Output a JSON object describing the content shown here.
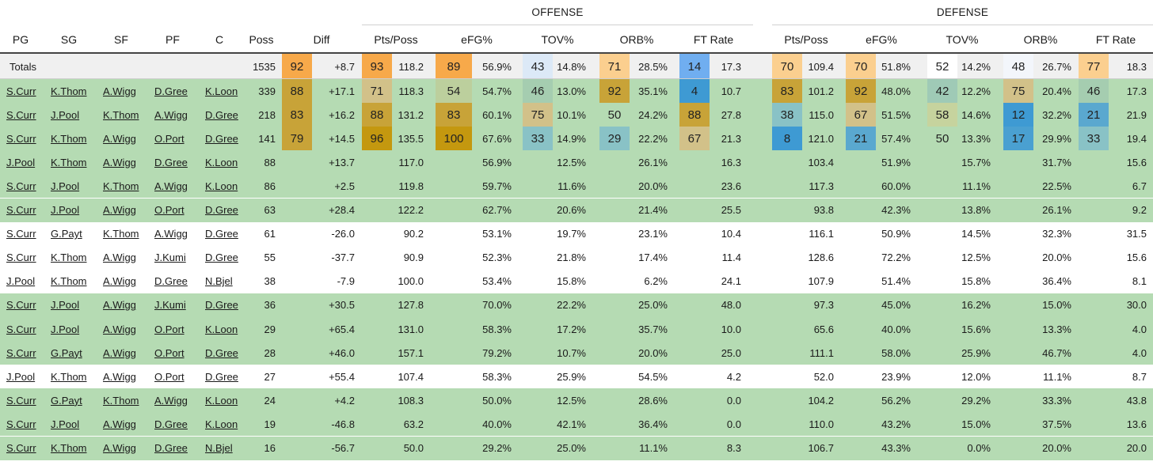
{
  "headers": {
    "groups": [
      {
        "label": "OFFENSE",
        "col_start": 8,
        "col_end": 17
      },
      {
        "label": "DEFENSE",
        "col_start": 18,
        "col_end": 27
      }
    ],
    "columns": [
      {
        "label": "PG",
        "align": "c"
      },
      {
        "label": "SG",
        "align": "c"
      },
      {
        "label": "SF",
        "align": "c"
      },
      {
        "label": "PF",
        "align": "c"
      },
      {
        "label": "C",
        "align": "c"
      },
      {
        "label": "Poss",
        "align": "c"
      },
      {
        "label": "",
        "align": "c"
      },
      {
        "label": "Diff",
        "align": "c"
      },
      {
        "label": "Pts/Poss",
        "align": "c",
        "span": 2
      },
      {
        "label": "",
        "align": "c"
      },
      {
        "label": "eFG%",
        "align": "c",
        "span": 2
      },
      {
        "label": "",
        "align": "c"
      },
      {
        "label": "TOV%",
        "align": "c",
        "span": 2
      },
      {
        "label": "",
        "align": "c"
      },
      {
        "label": "ORB%",
        "align": "c",
        "span": 2
      },
      {
        "label": "",
        "align": "c"
      },
      {
        "label": "FT Rate",
        "align": "c",
        "span": 2
      },
      {
        "label": "",
        "align": "c"
      },
      {
        "label": "Pts/Poss",
        "align": "c",
        "span": 2
      },
      {
        "label": "",
        "align": "c"
      },
      {
        "label": "eFG%",
        "align": "c",
        "span": 2
      },
      {
        "label": "",
        "align": "c"
      },
      {
        "label": "TOV%",
        "align": "c",
        "span": 2
      },
      {
        "label": "",
        "align": "c"
      },
      {
        "label": "ORB%",
        "align": "c",
        "span": 2
      },
      {
        "label": "",
        "align": "c"
      },
      {
        "label": "FT Rate",
        "align": "c",
        "span": 2
      },
      {
        "label": "",
        "align": "c"
      }
    ]
  },
  "colors": {
    "green_row": "#b5dbb3",
    "totals_row": "#f0f0f0",
    "heat_orange": "#f7a94a",
    "heat_light_orange": "#fbcf8f",
    "heat_gold": "#c8a338",
    "heat_olive": "#d2c189",
    "heat_teal": "#89c2c6",
    "heat_blue": "#3e9ad3",
    "heat_light_blue": "#dce9f7"
  },
  "totals": {
    "label": "Totals",
    "poss": "1535",
    "diff_pct": "92",
    "diff_pct_color": "#f7a94a",
    "diff": "+8.7",
    "o_pts_pct": "93",
    "o_pts_pct_color": "#f7a94a",
    "o_pts": "118.2",
    "o_efg_pct": "89",
    "o_efg_pct_color": "#f7a94a",
    "o_efg": "56.9%",
    "o_tov_pct": "43",
    "o_tov_pct_color": "#dce9f7",
    "o_tov": "14.8%",
    "o_orb_pct": "71",
    "o_orb_pct_color": "#fbcf8f",
    "o_orb": "28.5%",
    "o_ft_pct": "14",
    "o_ft_pct_color": "#70aef0",
    "o_ft": "17.3",
    "d_pts_pct": "70",
    "d_pts_pct_color": "#fbcf8f",
    "d_pts": "109.4",
    "d_efg_pct": "70",
    "d_efg_pct_color": "#fbcf8f",
    "d_efg": "51.8%",
    "d_tov_pct": "52",
    "d_tov_pct_color": "#ffffff",
    "d_tov": "14.2%",
    "d_orb_pct": "48",
    "d_orb_pct_color": "#f3f6fb",
    "d_orb": "26.7%",
    "d_ft_pct": "77",
    "d_ft_pct_color": "#fbcf8f",
    "d_ft": "18.3"
  },
  "rows": [
    {
      "green": true,
      "pg": "S.Curr",
      "sg": "K.Thom",
      "sf": "A.Wigg",
      "pf": "D.Gree",
      "c": "K.Loon",
      "poss": "339",
      "diff": "+17.1",
      "o_pts": "118.3",
      "o_efg": "54.7%",
      "o_tov": "13.0%",
      "o_orb": "35.1%",
      "o_ft": "10.7",
      "d_pts": "101.2",
      "d_efg": "48.0%",
      "d_tov": "12.2%",
      "d_orb": "20.4%",
      "d_ft": "17.3",
      "pct": {
        "diff": [
          "88",
          "#c8a338"
        ],
        "o_pts": [
          "71",
          "#d2c189"
        ],
        "o_efg": [
          "54",
          "#bccf9d"
        ],
        "o_tov": [
          "46",
          "#a5cdb0"
        ],
        "o_orb": [
          "92",
          "#c8a338"
        ],
        "o_ft": [
          "4",
          "#3e9ad3"
        ],
        "d_pts": [
          "83",
          "#c8a338"
        ],
        "d_efg": [
          "92",
          "#c8a338"
        ],
        "d_tov": [
          "42",
          "#9fcab6"
        ],
        "d_orb": [
          "75",
          "#d2c189"
        ],
        "d_ft": [
          "46",
          "#a5cdb0"
        ]
      }
    },
    {
      "green": true,
      "pg": "S.Curr",
      "sg": "J.Pool",
      "sf": "K.Thom",
      "pf": "A.Wigg",
      "c": "D.Gree",
      "poss": "218",
      "diff": "+16.2",
      "o_pts": "131.2",
      "o_efg": "60.1%",
      "o_tov": "10.1%",
      "o_orb": "24.2%",
      "o_ft": "27.8",
      "d_pts": "115.0",
      "d_efg": "51.5%",
      "d_tov": "14.6%",
      "d_orb": "32.2%",
      "d_ft": "21.9",
      "pct": {
        "diff": [
          "83",
          "#c8a338"
        ],
        "o_pts": [
          "88",
          "#c8a338"
        ],
        "o_efg": [
          "83",
          "#c8a338"
        ],
        "o_tov": [
          "75",
          "#d2c189"
        ],
        "o_orb": [
          "50",
          "#b5dbb3"
        ],
        "o_ft": [
          "88",
          "#c8a338"
        ],
        "d_pts": [
          "38",
          "#89c2c6"
        ],
        "d_efg": [
          "67",
          "#d2c189"
        ],
        "d_tov": [
          "58",
          "#c6d39e"
        ],
        "d_orb": [
          "12",
          "#3e9ad3"
        ],
        "d_ft": [
          "21",
          "#5aa8cf"
        ]
      }
    },
    {
      "green": true,
      "pg": "S.Curr",
      "sg": "K.Thom",
      "sf": "A.Wigg",
      "pf": "O.Port",
      "c": "D.Gree",
      "poss": "141",
      "diff": "+14.5",
      "o_pts": "135.5",
      "o_efg": "67.6%",
      "o_tov": "14.9%",
      "o_orb": "22.2%",
      "o_ft": "21.3",
      "d_pts": "121.0",
      "d_efg": "57.4%",
      "d_tov": "13.3%",
      "d_orb": "29.9%",
      "d_ft": "19.4",
      "pct": {
        "diff": [
          "79",
          "#c8a338"
        ],
        "o_pts": [
          "96",
          "#c4980f"
        ],
        "o_efg": [
          "100",
          "#c4980f"
        ],
        "o_tov": [
          "33",
          "#89c2c6"
        ],
        "o_orb": [
          "29",
          "#89c2c6"
        ],
        "o_ft": [
          "67",
          "#d2c189"
        ],
        "d_pts": [
          "8",
          "#3e9ad3"
        ],
        "d_efg": [
          "21",
          "#5aa8cf"
        ],
        "d_tov": [
          "50",
          "#b5dbb3"
        ],
        "d_orb": [
          "17",
          "#4aa0d1"
        ],
        "d_ft": [
          "33",
          "#89c2c6"
        ]
      }
    },
    {
      "green": true,
      "pg": "J.Pool",
      "sg": "K.Thom",
      "sf": "A.Wigg",
      "pf": "D.Gree",
      "c": "K.Loon",
      "poss": "88",
      "diff": "+13.7",
      "o_pts": "117.0",
      "o_efg": "56.9%",
      "o_tov": "12.5%",
      "o_orb": "26.1%",
      "o_ft": "16.3",
      "d_pts": "103.4",
      "d_efg": "51.9%",
      "d_tov": "15.7%",
      "d_orb": "31.7%",
      "d_ft": "15.6"
    },
    {
      "green": true,
      "pg": "S.Curr",
      "sg": "J.Pool",
      "sf": "K.Thom",
      "pf": "A.Wigg",
      "c": "K.Loon",
      "poss": "86",
      "diff": "+2.5",
      "o_pts": "119.8",
      "o_efg": "59.7%",
      "o_tov": "11.6%",
      "o_orb": "20.0%",
      "o_ft": "23.6",
      "d_pts": "117.3",
      "d_efg": "60.0%",
      "d_tov": "11.1%",
      "d_orb": "22.5%",
      "d_ft": "6.7"
    },
    {
      "green": true,
      "pg": "S.Curr",
      "sg": "J.Pool",
      "sf": "A.Wigg",
      "pf": "O.Port",
      "c": "D.Gree",
      "poss": "63",
      "diff": "+28.4",
      "o_pts": "122.2",
      "o_efg": "62.7%",
      "o_tov": "20.6%",
      "o_orb": "21.4%",
      "o_ft": "25.5",
      "d_pts": "93.8",
      "d_efg": "42.3%",
      "d_tov": "13.8%",
      "d_orb": "26.1%",
      "d_ft": "9.2"
    },
    {
      "green": false,
      "pg": "S.Curr",
      "sg": "G.Payt",
      "sf": "K.Thom",
      "pf": "A.Wigg",
      "c": "D.Gree",
      "poss": "61",
      "diff": "-26.0",
      "o_pts": "90.2",
      "o_efg": "53.1%",
      "o_tov": "19.7%",
      "o_orb": "23.1%",
      "o_ft": "10.4",
      "d_pts": "116.1",
      "d_efg": "50.9%",
      "d_tov": "14.5%",
      "d_orb": "32.3%",
      "d_ft": "31.5"
    },
    {
      "green": false,
      "pg": "S.Curr",
      "sg": "K.Thom",
      "sf": "A.Wigg",
      "pf": "J.Kumi",
      "c": "D.Gree",
      "poss": "55",
      "diff": "-37.7",
      "o_pts": "90.9",
      "o_efg": "52.3%",
      "o_tov": "21.8%",
      "o_orb": "17.4%",
      "o_ft": "11.4",
      "d_pts": "128.6",
      "d_efg": "72.2%",
      "d_tov": "12.5%",
      "d_orb": "20.0%",
      "d_ft": "15.6"
    },
    {
      "green": false,
      "pg": "J.Pool",
      "sg": "K.Thom",
      "sf": "A.Wigg",
      "pf": "D.Gree",
      "c": "N.Bjel",
      "poss": "38",
      "diff": "-7.9",
      "o_pts": "100.0",
      "o_efg": "53.4%",
      "o_tov": "15.8%",
      "o_orb": "6.2%",
      "o_ft": "24.1",
      "d_pts": "107.9",
      "d_efg": "51.4%",
      "d_tov": "15.8%",
      "d_orb": "36.4%",
      "d_ft": "8.1"
    },
    {
      "green": true,
      "pg": "S.Curr",
      "sg": "J.Pool",
      "sf": "A.Wigg",
      "pf": "J.Kumi",
      "c": "D.Gree",
      "poss": "36",
      "diff": "+30.5",
      "o_pts": "127.8",
      "o_efg": "70.0%",
      "o_tov": "22.2%",
      "o_orb": "25.0%",
      "o_ft": "48.0",
      "d_pts": "97.3",
      "d_efg": "45.0%",
      "d_tov": "16.2%",
      "d_orb": "15.0%",
      "d_ft": "30.0"
    },
    {
      "green": true,
      "pg": "S.Curr",
      "sg": "J.Pool",
      "sf": "A.Wigg",
      "pf": "O.Port",
      "c": "K.Loon",
      "poss": "29",
      "diff": "+65.4",
      "o_pts": "131.0",
      "o_efg": "58.3%",
      "o_tov": "17.2%",
      "o_orb": "35.7%",
      "o_ft": "10.0",
      "d_pts": "65.6",
      "d_efg": "40.0%",
      "d_tov": "15.6%",
      "d_orb": "13.3%",
      "d_ft": "4.0"
    },
    {
      "green": true,
      "pg": "S.Curr",
      "sg": "G.Payt",
      "sf": "A.Wigg",
      "pf": "O.Port",
      "c": "D.Gree",
      "poss": "28",
      "diff": "+46.0",
      "o_pts": "157.1",
      "o_efg": "79.2%",
      "o_tov": "10.7%",
      "o_orb": "20.0%",
      "o_ft": "25.0",
      "d_pts": "111.1",
      "d_efg": "58.0%",
      "d_tov": "25.9%",
      "d_orb": "46.7%",
      "d_ft": "4.0"
    },
    {
      "green": false,
      "pg": "J.Pool",
      "sg": "K.Thom",
      "sf": "A.Wigg",
      "pf": "O.Port",
      "c": "D.Gree",
      "poss": "27",
      "diff": "+55.4",
      "o_pts": "107.4",
      "o_efg": "58.3%",
      "o_tov": "25.9%",
      "o_orb": "54.5%",
      "o_ft": "4.2",
      "d_pts": "52.0",
      "d_efg": "23.9%",
      "d_tov": "12.0%",
      "d_orb": "11.1%",
      "d_ft": "8.7"
    },
    {
      "green": true,
      "pg": "S.Curr",
      "sg": "G.Payt",
      "sf": "K.Thom",
      "pf": "A.Wigg",
      "c": "K.Loon",
      "poss": "24",
      "diff": "+4.2",
      "o_pts": "108.3",
      "o_efg": "50.0%",
      "o_tov": "12.5%",
      "o_orb": "28.6%",
      "o_ft": "0.0",
      "d_pts": "104.2",
      "d_efg": "56.2%",
      "d_tov": "29.2%",
      "d_orb": "33.3%",
      "d_ft": "43.8"
    },
    {
      "green": true,
      "pg": "S.Curr",
      "sg": "J.Pool",
      "sf": "A.Wigg",
      "pf": "D.Gree",
      "c": "K.Loon",
      "poss": "19",
      "diff": "-46.8",
      "o_pts": "63.2",
      "o_efg": "40.0%",
      "o_tov": "42.1%",
      "o_orb": "36.4%",
      "o_ft": "0.0",
      "d_pts": "110.0",
      "d_efg": "43.2%",
      "d_tov": "15.0%",
      "d_orb": "37.5%",
      "d_ft": "13.6"
    },
    {
      "green": true,
      "pg": "S.Curr",
      "sg": "K.Thom",
      "sf": "A.Wigg",
      "pf": "D.Gree",
      "c": "N.Bjel",
      "poss": "16",
      "diff": "-56.7",
      "o_pts": "50.0",
      "o_efg": "29.2%",
      "o_tov": "25.0%",
      "o_orb": "11.1%",
      "o_ft": "8.3",
      "d_pts": "106.7",
      "d_efg": "43.3%",
      "d_tov": "0.0%",
      "d_orb": "20.0%",
      "d_ft": "20.0"
    }
  ]
}
